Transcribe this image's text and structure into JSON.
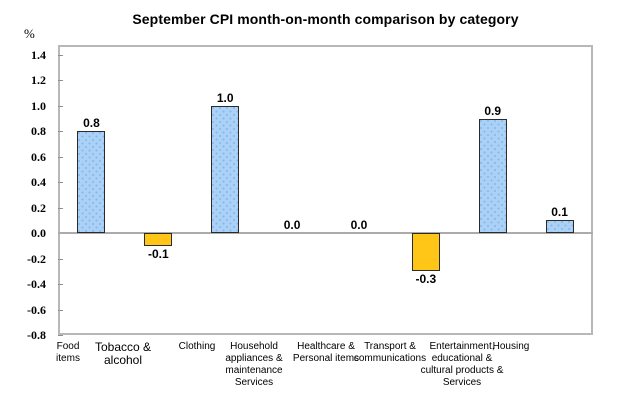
{
  "chart_data": {
    "type": "bar",
    "title": "September CPI month-on-month comparison by category",
    "ylabel": "%",
    "xlabel": "",
    "categories": [
      "Food items",
      "Tobacco & alcohol",
      "Clothing",
      "Household appliances & maintenance Services",
      "Healthcare & Personal items",
      "Transport & communications",
      "Entertainment, educational & cultural products & Services",
      "Housing"
    ],
    "category_lines": [
      [
        "Food",
        "items"
      ],
      [
        "Tobacco &",
        "alcohol"
      ],
      [
        "Clothing"
      ],
      [
        "Household",
        "appliances &",
        "maintenance",
        "Services"
      ],
      [
        "Healthcare &",
        "Personal items"
      ],
      [
        "Transport &",
        "communications"
      ],
      [
        "Entertainment,",
        "educational &",
        "cultural products &",
        "Services"
      ],
      [
        "Housing"
      ]
    ],
    "values": [
      0.8,
      -0.1,
      1.0,
      0.0,
      0.0,
      -0.3,
      0.9,
      0.1
    ],
    "data_labels": [
      "0.8",
      "-0.1",
      "1.0",
      "0.0",
      "0.0",
      "-0.3",
      "0.9",
      "0.1"
    ],
    "yticks": [
      "1.4",
      "1.2",
      "1.0",
      "0.8",
      "0.6",
      "0.4",
      "0.2",
      "0.0",
      "-0.2",
      "-0.4",
      "-0.6",
      "-0.8"
    ],
    "ylim": [
      -0.8,
      1.4
    ],
    "ytick_step": 0.2,
    "grid": false,
    "legend_position": "none",
    "colors": {
      "positive_bar": "#abd2f6",
      "positive_bar_dots": "#84b8ea",
      "negative_bar": "#ffc517",
      "bar_border": "#2b2b2b",
      "zero_line": "#ababab",
      "plot_border": "#b8b8b8",
      "text": "#000000"
    }
  }
}
